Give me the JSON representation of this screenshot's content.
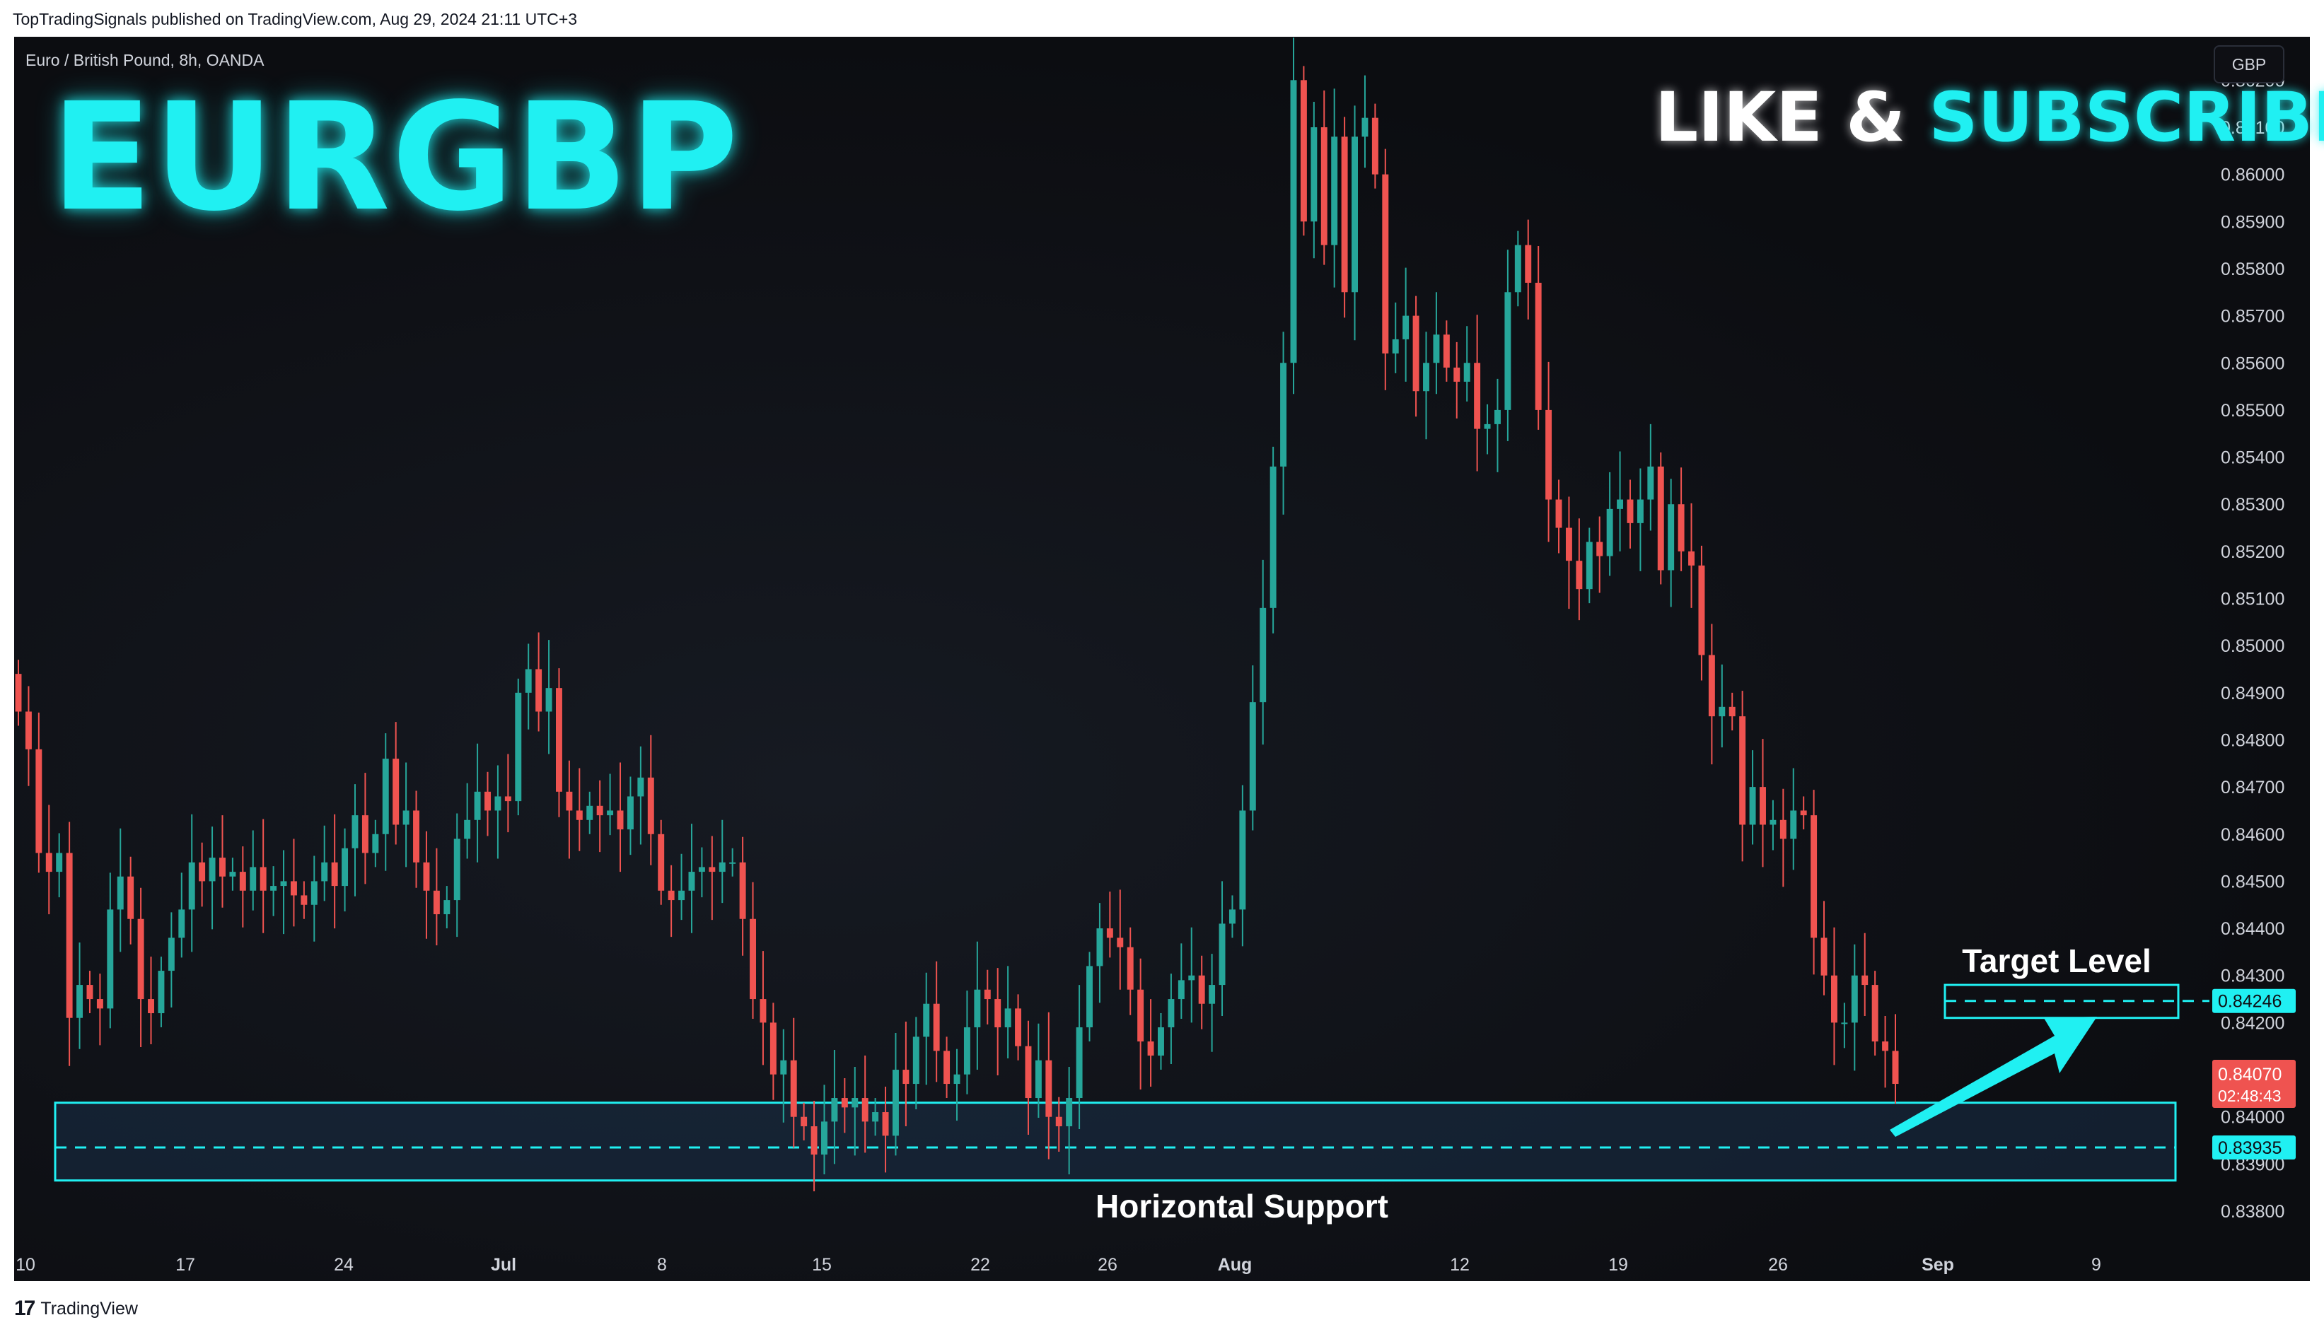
{
  "header": {
    "published_by": "TopTradingSignals published on TradingView.com, Aug 29, 2024 21:11 UTC+3"
  },
  "chart_header": {
    "symbol_description": "Euro / British Pound, 8h, OANDA",
    "big_title": "EURGBP",
    "promo_white": "LIKE &",
    "promo_cyan": "SUBSCRIBE",
    "currency_button": "GBP"
  },
  "annotations": {
    "target_label": "Target Level",
    "support_label": "Horizontal Support",
    "target_price": "0.84246",
    "support_price": "0.83935",
    "current_price": "0.84070",
    "countdown": "02:48:43"
  },
  "footer": {
    "logo_glyph": "17",
    "brand": "TradingView"
  },
  "colors": {
    "up": "#26a69a",
    "down": "#ef5350",
    "accent": "#20f0f2",
    "background": "#0e0f14"
  },
  "chart_data": {
    "type": "candlestick",
    "title": "EURGBP",
    "interval": "8h",
    "ylim": [
      0.8374,
      0.8631
    ],
    "y_ticks": [
      "0.83800",
      "0.83900",
      "0.84000",
      "0.84100",
      "0.84200",
      "0.84300",
      "0.84400",
      "0.84500",
      "0.84600",
      "0.84700",
      "0.84800",
      "0.84900",
      "0.85000",
      "0.85100",
      "0.85200",
      "0.85300",
      "0.85400",
      "0.85500",
      "0.85600",
      "0.85700",
      "0.85800",
      "0.85900",
      "0.86000",
      "0.86100",
      "0.86200"
    ],
    "x_ticks": [
      "10",
      "17",
      "24",
      "Jul",
      "8",
      "15",
      "22",
      "26",
      "Aug",
      "12",
      "19",
      "26",
      "Sep",
      "9"
    ],
    "grid": false,
    "candles_close": [
      0.8486,
      0.8478,
      0.8456,
      0.8452,
      0.8456,
      0.8421,
      0.8428,
      0.8425,
      0.8423,
      0.8444,
      0.8451,
      0.8442,
      0.8425,
      0.8422,
      0.8431,
      0.8438,
      0.8444,
      0.8454,
      0.845,
      0.8455,
      0.8451,
      0.8452,
      0.8448,
      0.8453,
      0.8448,
      0.8449,
      0.845,
      0.8447,
      0.8445,
      0.845,
      0.8454,
      0.8449,
      0.8457,
      0.8464,
      0.8456,
      0.846,
      0.8476,
      0.8462,
      0.8465,
      0.8454,
      0.8448,
      0.8443,
      0.8446,
      0.8459,
      0.8463,
      0.8469,
      0.8465,
      0.8468,
      0.8467,
      0.849,
      0.8495,
      0.8486,
      0.8491,
      0.8469,
      0.8465,
      0.8463,
      0.8466,
      0.8464,
      0.8465,
      0.8461,
      0.8468,
      0.8472,
      0.846,
      0.8448,
      0.8446,
      0.8448,
      0.8452,
      0.8453,
      0.8452,
      0.8454,
      0.8454,
      0.8442,
      0.8425,
      0.842,
      0.8409,
      0.8412,
      0.84,
      0.8398,
      0.8392,
      0.8399,
      0.8404,
      0.8402,
      0.8404,
      0.8399,
      0.8401,
      0.8396,
      0.841,
      0.8407,
      0.8417,
      0.8424,
      0.8414,
      0.8407,
      0.8409,
      0.8419,
      0.8427,
      0.8425,
      0.8419,
      0.8423,
      0.8415,
      0.8404,
      0.8412,
      0.84,
      0.8398,
      0.8404,
      0.8419,
      0.8432,
      0.844,
      0.8438,
      0.8436,
      0.8427,
      0.8416,
      0.8413,
      0.8419,
      0.8425,
      0.8429,
      0.843,
      0.8424,
      0.8428,
      0.8441,
      0.8444,
      0.8465,
      0.8488,
      0.8508,
      0.8538,
      0.856,
      0.862,
      0.859,
      0.861,
      0.8585,
      0.8608,
      0.8575,
      0.8608,
      0.8612,
      0.86,
      0.8562,
      0.8565,
      0.857,
      0.8554,
      0.856,
      0.8566,
      0.8559,
      0.8556,
      0.856,
      0.8546,
      0.8547,
      0.855,
      0.8575,
      0.8585,
      0.8577,
      0.855,
      0.8531,
      0.8525,
      0.8518,
      0.8512,
      0.8522,
      0.8519,
      0.8529,
      0.8531,
      0.8526,
      0.8531,
      0.8538,
      0.8516,
      0.853,
      0.852,
      0.8517,
      0.8498,
      0.8485,
      0.8487,
      0.8485,
      0.8462,
      0.847,
      0.8462,
      0.8463,
      0.8459,
      0.8465,
      0.8464,
      0.8438,
      0.843,
      0.842,
      0.842,
      0.843,
      0.8428,
      0.8416,
      0.8414,
      0.8407
    ]
  }
}
